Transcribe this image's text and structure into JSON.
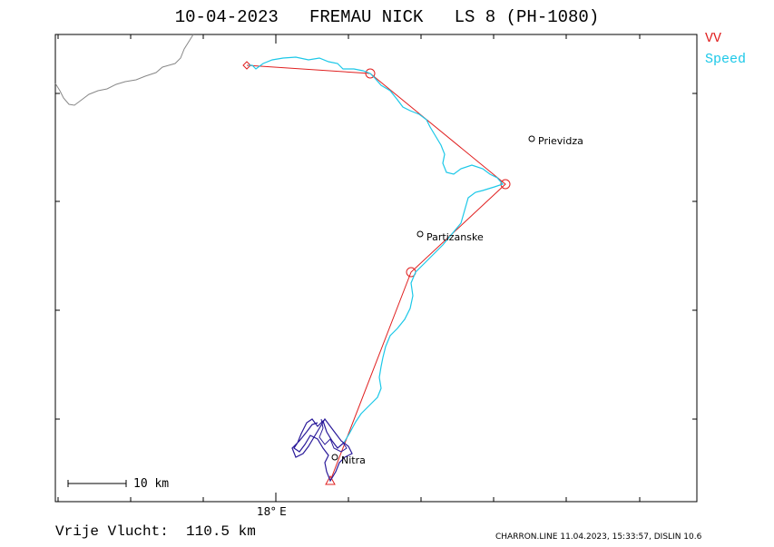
{
  "title": "10-04-2023   FREMAU NICK   LS 8 (PH-1080)",
  "legend": {
    "vv_label": "VV",
    "speed_label": "Speed",
    "vv_color": "#e02020",
    "speed_color": "#1cc8e8"
  },
  "cities": [
    {
      "name": "Prievidza"
    },
    {
      "name": "Partizanske"
    },
    {
      "name": "Nitra"
    }
  ],
  "axis": {
    "x_label": "18° E"
  },
  "scale_bar": {
    "label": "10 km"
  },
  "distance_label": "Vrije Vlucht:  110.5 km",
  "footer": "CHARRON.LINE 11.04.2023, 15:33:57, DISLIN 10.6"
}
